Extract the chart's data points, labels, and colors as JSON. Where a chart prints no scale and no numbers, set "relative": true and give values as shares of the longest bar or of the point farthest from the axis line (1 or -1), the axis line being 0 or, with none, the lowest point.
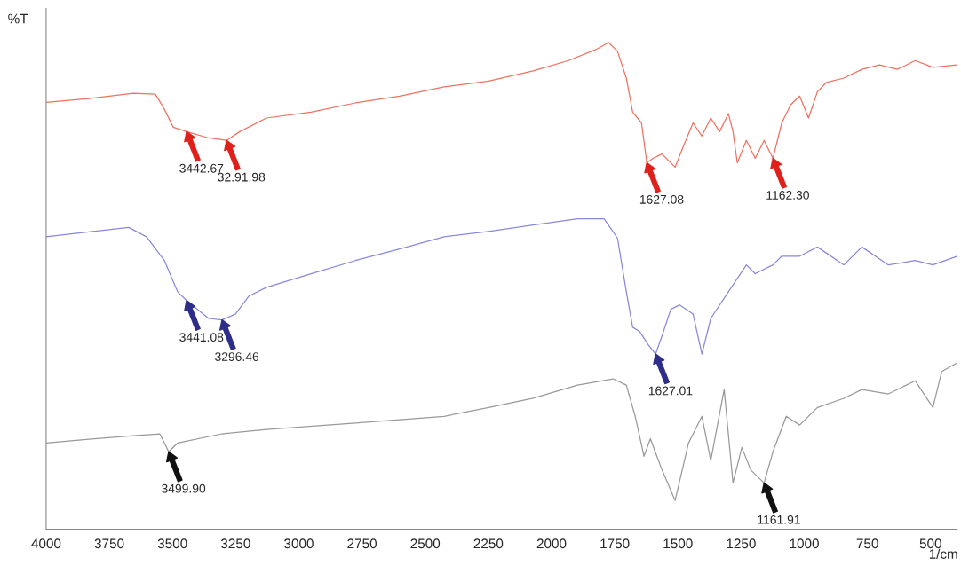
{
  "chart_data": {
    "type": "line",
    "relative": true,
    "ylabel": "%T",
    "xlabel": "1/cm",
    "xlim": [
      4000,
      395
    ],
    "xticks": [
      4000,
      3750,
      3500,
      3250,
      3000,
      2750,
      2500,
      2250,
      2000,
      1750,
      1500,
      1250,
      1000,
      750,
      500
    ],
    "grid": false,
    "marker": "none",
    "line_style": "solid",
    "tick_labels": "x",
    "series": [
      {
        "color": "#f07060",
        "x": [
          4000,
          3831,
          3655,
          3568,
          3532,
          3497,
          3444,
          3357,
          3286,
          3234,
          3128,
          2952,
          2776,
          2601,
          2425,
          2249,
          2073,
          1933,
          1827,
          1774,
          1739,
          1704,
          1679,
          1644,
          1623,
          1599,
          1563,
          1511,
          1476,
          1440,
          1405,
          1370,
          1335,
          1300,
          1282,
          1265,
          1229,
          1194,
          1159,
          1124,
          1089,
          1054,
          1018,
          983,
          948,
          913,
          843,
          772,
          702,
          632,
          561,
          491,
          395
        ],
        "values": [
          0.877,
          0.885,
          0.896,
          0.894,
          0.863,
          0.826,
          0.817,
          0.804,
          0.799,
          0.817,
          0.845,
          0.857,
          0.876,
          0.89,
          0.909,
          0.921,
          0.942,
          0.963,
          0.985,
          1.0,
          0.982,
          0.927,
          0.857,
          0.835,
          0.753,
          0.762,
          0.771,
          0.744,
          0.79,
          0.835,
          0.808,
          0.845,
          0.817,
          0.854,
          0.817,
          0.753,
          0.799,
          0.762,
          0.799,
          0.762,
          0.835,
          0.872,
          0.89,
          0.845,
          0.899,
          0.918,
          0.927,
          0.945,
          0.954,
          0.945,
          0.963,
          0.949,
          0.954
        ]
      },
      {
        "color": "#8888dd",
        "x": [
          4000,
          3831,
          3673,
          3603,
          3532,
          3480,
          3444,
          3357,
          3304,
          3251,
          3198,
          3128,
          2952,
          2776,
          2601,
          2425,
          2249,
          2073,
          1897,
          1792,
          1739,
          1704,
          1679,
          1651,
          1616,
          1588,
          1563,
          1528,
          1493,
          1440,
          1405,
          1370,
          1300,
          1229,
          1194,
          1124,
          1089,
          1018,
          948,
          843,
          772,
          667,
          561,
          491,
          395
        ],
        "values": [
          0.601,
          0.611,
          0.62,
          0.601,
          0.552,
          0.488,
          0.47,
          0.433,
          0.43,
          0.442,
          0.479,
          0.497,
          0.525,
          0.552,
          0.576,
          0.601,
          0.612,
          0.625,
          0.638,
          0.638,
          0.598,
          0.488,
          0.415,
          0.406,
          0.378,
          0.36,
          0.397,
          0.452,
          0.461,
          0.442,
          0.36,
          0.433,
          0.488,
          0.543,
          0.525,
          0.543,
          0.561,
          0.561,
          0.58,
          0.543,
          0.58,
          0.543,
          0.552,
          0.543,
          0.561
        ]
      },
      {
        "color": "#999999",
        "x": [
          4000,
          3831,
          3655,
          3550,
          3515,
          3480,
          3304,
          3128,
          2776,
          2601,
          2425,
          2249,
          2073,
          1897,
          1757,
          1704,
          1669,
          1634,
          1609,
          1563,
          1511,
          1458,
          1405,
          1370,
          1317,
          1282,
          1247,
          1212,
          1159,
          1124,
          1071,
          1018,
          948,
          843,
          772,
          667,
          561,
          491,
          456,
          395
        ],
        "values": [
          0.177,
          0.185,
          0.192,
          0.196,
          0.159,
          0.177,
          0.196,
          0.205,
          0.218,
          0.225,
          0.232,
          0.25,
          0.269,
          0.296,
          0.309,
          0.296,
          0.232,
          0.15,
          0.186,
          0.122,
          0.059,
          0.177,
          0.232,
          0.141,
          0.287,
          0.095,
          0.168,
          0.122,
          0.095,
          0.159,
          0.232,
          0.214,
          0.25,
          0.269,
          0.287,
          0.278,
          0.305,
          0.25,
          0.324,
          0.342
        ]
      }
    ],
    "annotations": [
      {
        "text": "3442.67",
        "x": 3444,
        "y": 0.817
      },
      {
        "text": "32.91.98",
        "x": 3286,
        "y": 0.799
      },
      {
        "text": "1627.08",
        "x": 1623,
        "y": 0.753
      },
      {
        "text": "1162.30",
        "x": 1124,
        "y": 0.762
      },
      {
        "text": "3441.08",
        "x": 3444,
        "y": 0.47
      },
      {
        "text": "3296.46",
        "x": 3304,
        "y": 0.43
      },
      {
        "text": "1627.01",
        "x": 1588,
        "y": 0.36
      },
      {
        "text": "3499.90",
        "x": 3515,
        "y": 0.159
      },
      {
        "text": "1161.91",
        "x": 1159,
        "y": 0.095
      }
    ]
  }
}
